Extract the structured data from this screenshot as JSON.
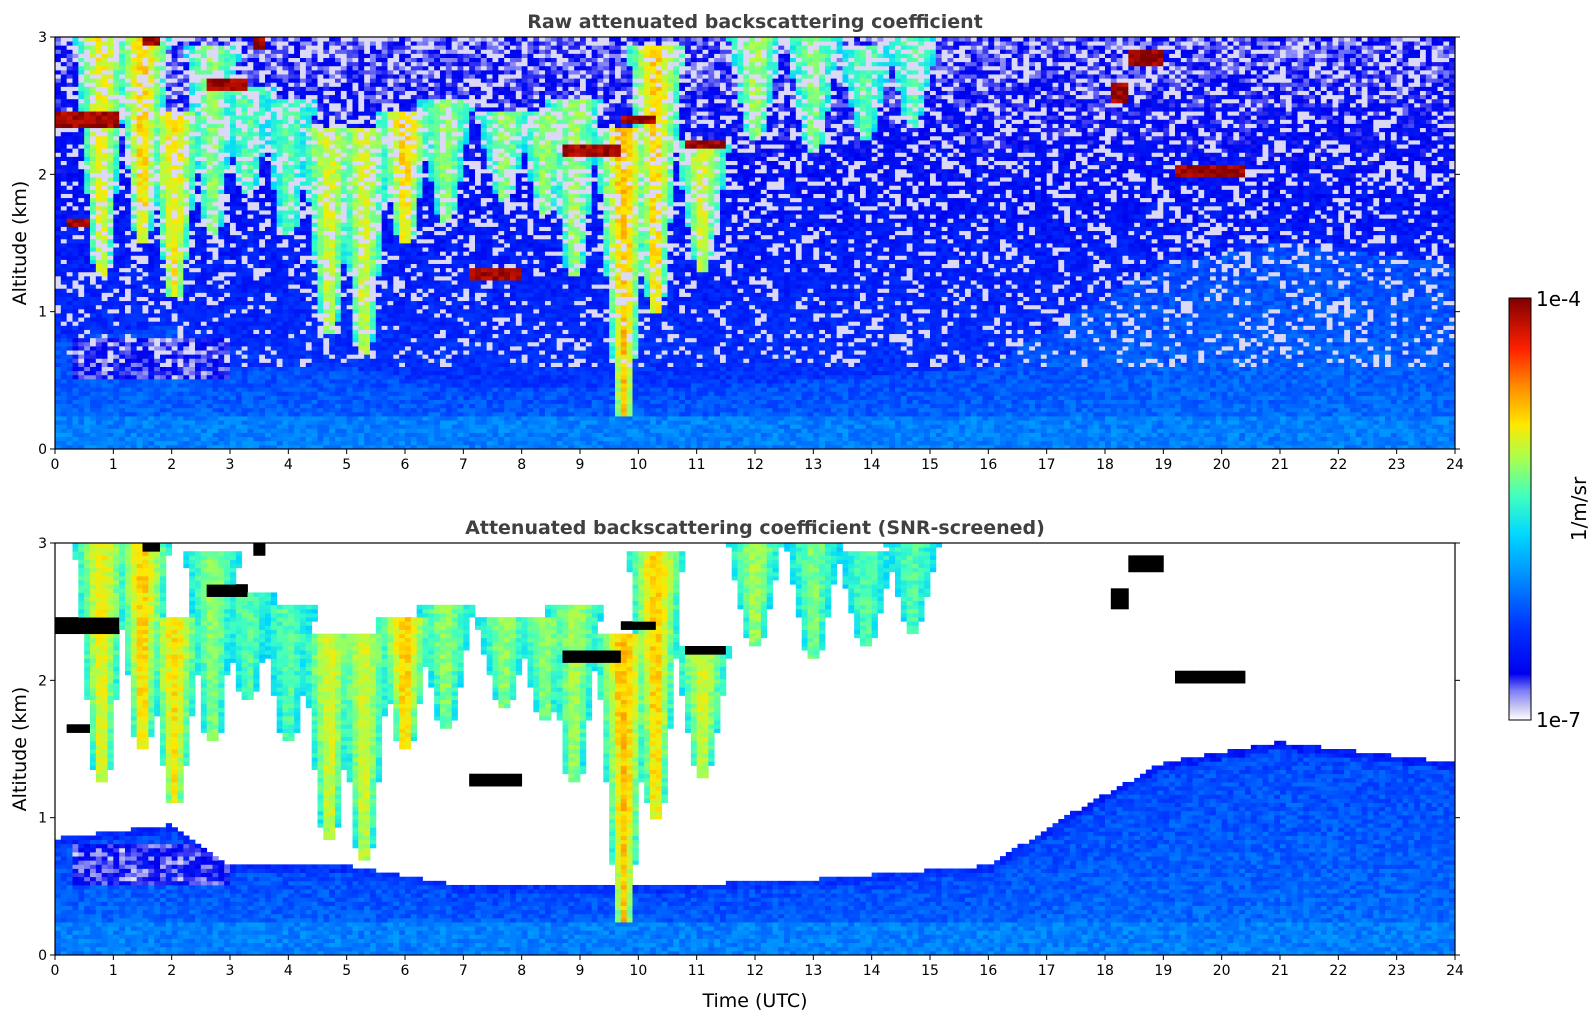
{
  "chart_data": [
    {
      "type": "heatmap",
      "title": "Raw attenuated backscattering coefficient",
      "xlabel": "",
      "ylabel": "Altitude (km)",
      "xlim": [
        0,
        24
      ],
      "ylim": [
        0,
        3
      ],
      "x_ticks": [
        "0",
        "1",
        "2",
        "3",
        "4",
        "5",
        "6",
        "7",
        "8",
        "9",
        "10",
        "11",
        "12",
        "13",
        "14",
        "15",
        "16",
        "17",
        "18",
        "19",
        "20",
        "21",
        "22",
        "23",
        "24"
      ],
      "y_ticks": [
        "0",
        "1",
        "2",
        "3"
      ],
      "screening": "none"
    },
    {
      "type": "heatmap",
      "title": "Attenuated backscattering coefficient (SNR-screened)",
      "xlabel": "Time (UTC)",
      "ylabel": "Altitude (km)",
      "xlim": [
        0,
        24
      ],
      "ylim": [
        0,
        3
      ],
      "x_ticks": [
        "0",
        "1",
        "2",
        "3",
        "4",
        "5",
        "6",
        "7",
        "8",
        "9",
        "10",
        "11",
        "12",
        "13",
        "14",
        "15",
        "16",
        "17",
        "18",
        "19",
        "20",
        "21",
        "22",
        "23",
        "24"
      ],
      "y_ticks": [
        "0",
        "1",
        "2",
        "3"
      ],
      "screening": "SNR"
    }
  ],
  "colorbar": {
    "label": "1/m/sr",
    "max_label": "1e-4",
    "min_label": "1e-7",
    "scale": "log",
    "range": [
      1e-07,
      0.0001
    ],
    "colormap": "jet"
  },
  "features": {
    "aerosol_plumes": [
      {
        "t": 0.8,
        "top": 3.0,
        "bottom": 1.3,
        "level": 0.68
      },
      {
        "t": 1.5,
        "top": 3.0,
        "bottom": 1.55,
        "level": 0.72
      },
      {
        "t": 2.05,
        "top": 2.4,
        "bottom": 1.15,
        "level": 0.7
      },
      {
        "t": 2.7,
        "top": 2.9,
        "bottom": 1.6,
        "level": 0.6
      },
      {
        "t": 3.3,
        "top": 2.6,
        "bottom": 1.9,
        "level": 0.55
      },
      {
        "t": 4.0,
        "top": 2.5,
        "bottom": 1.6,
        "level": 0.55
      },
      {
        "t": 4.7,
        "top": 2.3,
        "bottom": 0.9,
        "level": 0.66
      },
      {
        "t": 5.3,
        "top": 2.3,
        "bottom": 0.75,
        "level": 0.66
      },
      {
        "t": 6.0,
        "top": 2.4,
        "bottom": 1.55,
        "level": 0.72
      },
      {
        "t": 6.7,
        "top": 2.5,
        "bottom": 1.7,
        "level": 0.6
      },
      {
        "t": 7.7,
        "top": 2.4,
        "bottom": 1.85,
        "level": 0.6
      },
      {
        "t": 8.4,
        "top": 2.4,
        "bottom": 1.75,
        "level": 0.6
      },
      {
        "t": 8.9,
        "top": 2.5,
        "bottom": 1.3,
        "level": 0.62
      },
      {
        "t": 9.75,
        "top": 2.3,
        "bottom": 0.3,
        "level": 0.74
      },
      {
        "t": 10.3,
        "top": 2.9,
        "bottom": 1.05,
        "level": 0.72
      },
      {
        "t": 11.1,
        "top": 2.2,
        "bottom": 1.35,
        "level": 0.66
      },
      {
        "t": 12.0,
        "top": 3.0,
        "bottom": 2.3,
        "level": 0.62
      },
      {
        "t": 13.0,
        "top": 3.0,
        "bottom": 2.2,
        "level": 0.58
      },
      {
        "t": 13.9,
        "top": 2.9,
        "bottom": 2.3,
        "level": 0.55
      },
      {
        "t": 14.7,
        "top": 3.0,
        "bottom": 2.4,
        "level": 0.55
      }
    ],
    "cloud_layers": [
      {
        "t0": 0.0,
        "t1": 1.05,
        "alt": 2.4,
        "thick": 0.12
      },
      {
        "t0": 2.6,
        "t1": 3.3,
        "alt": 2.65,
        "thick": 0.1
      },
      {
        "t0": 7.1,
        "t1": 8.0,
        "alt": 1.28,
        "thick": 0.1
      },
      {
        "t0": 8.7,
        "t1": 9.7,
        "alt": 2.18,
        "thick": 0.1
      },
      {
        "t0": 9.7,
        "t1": 10.3,
        "alt": 2.4,
        "thick": 0.08
      },
      {
        "t0": 10.85,
        "t1": 11.5,
        "alt": 2.22,
        "thick": 0.08
      },
      {
        "t0": 18.1,
        "t1": 18.4,
        "alt": 2.6,
        "thick": 0.15
      },
      {
        "t0": 18.45,
        "t1": 19.0,
        "alt": 2.85,
        "thick": 0.1
      },
      {
        "t0": 19.2,
        "t1": 20.4,
        "alt": 2.02,
        "thick": 0.1
      },
      {
        "t0": 0.2,
        "t1": 0.6,
        "alt": 1.65,
        "thick": 0.05
      },
      {
        "t0": 1.5,
        "t1": 1.8,
        "alt": 3.0,
        "thick": 0.15
      },
      {
        "t0": 3.4,
        "t1": 3.6,
        "alt": 2.95,
        "thick": 0.08
      }
    ],
    "boundary_layer_top_km": [
      {
        "t": 0,
        "alt": 0.8
      },
      {
        "t": 2,
        "alt": 0.9
      },
      {
        "t": 3,
        "alt": 0.6
      },
      {
        "t": 5,
        "alt": 0.6
      },
      {
        "t": 7,
        "alt": 0.45
      },
      {
        "t": 10,
        "alt": 0.45
      },
      {
        "t": 13,
        "alt": 0.5
      },
      {
        "t": 16,
        "alt": 0.6
      },
      {
        "t": 17.5,
        "alt": 1.0
      },
      {
        "t": 19,
        "alt": 1.35
      },
      {
        "t": 21,
        "alt": 1.5
      },
      {
        "t": 24,
        "alt": 1.35
      }
    ]
  }
}
